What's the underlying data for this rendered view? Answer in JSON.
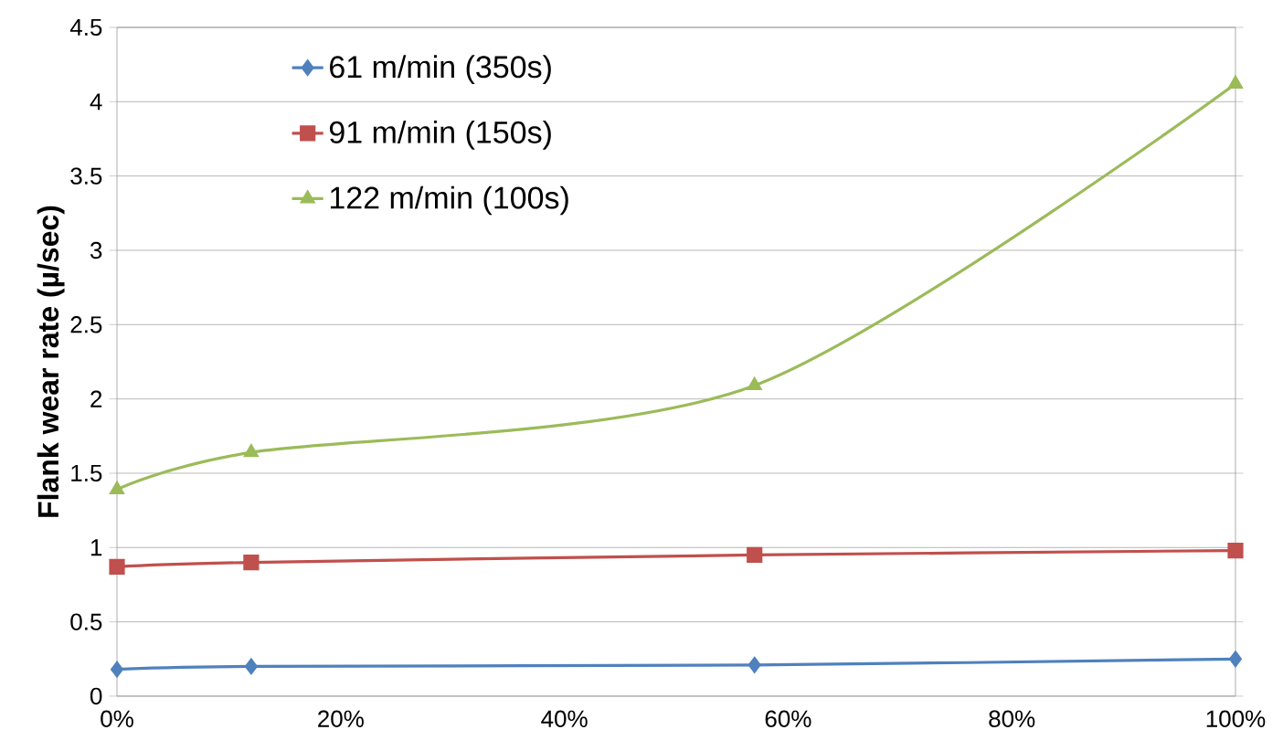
{
  "chart_data": {
    "type": "line",
    "ylabel": "Flank  wear rate (µ/sec)",
    "xlim": [
      0,
      100
    ],
    "ylim": [
      0,
      4.5
    ],
    "xticks": [
      {
        "value": 0,
        "label": "0%"
      },
      {
        "value": 20,
        "label": "20%"
      },
      {
        "value": 40,
        "label": "40%"
      },
      {
        "value": 60,
        "label": "60%"
      },
      {
        "value": 80,
        "label": "80%"
      },
      {
        "value": 100,
        "label": "100%"
      }
    ],
    "yticks": [
      0,
      0.5,
      1,
      1.5,
      2,
      2.5,
      3,
      3.5,
      4,
      4.5
    ],
    "grid": "y",
    "legend": "top left",
    "series": [
      {
        "name": "61 m/min (350s)",
        "color": "#4f81bd",
        "marker": "diamond",
        "x": [
          0,
          12,
          57,
          100
        ],
        "values": [
          0.18,
          0.2,
          0.21,
          0.25
        ]
      },
      {
        "name": "91 m/min (150s)",
        "color": "#c0504d",
        "marker": "square",
        "x": [
          0,
          12,
          57,
          100
        ],
        "values": [
          0.87,
          0.9,
          0.95,
          0.98
        ]
      },
      {
        "name": "122 m/min (100s)",
        "color": "#9bbb59",
        "marker": "triangle",
        "x": [
          0,
          12,
          57,
          100
        ],
        "values": [
          1.39,
          1.64,
          2.09,
          4.12
        ]
      }
    ]
  }
}
